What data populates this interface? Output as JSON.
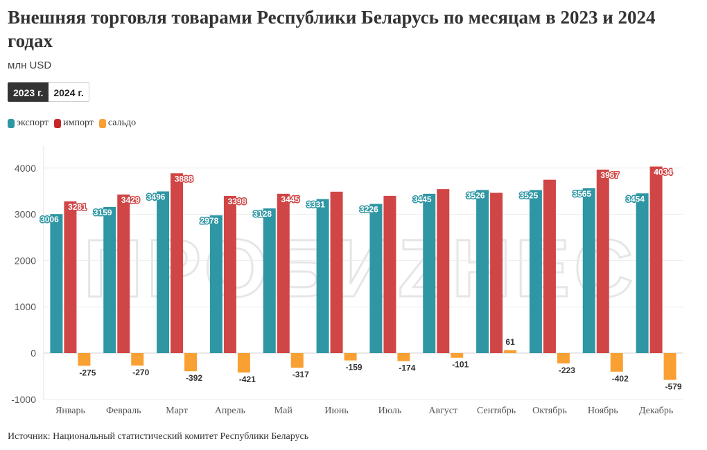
{
  "header": {
    "title": "Внешняя торговля товарами Республики Беларусь по месяцам в 2023 и 2024 годах",
    "subtitle": "млн USD"
  },
  "tabs": [
    {
      "label": "2023 г.",
      "active": true
    },
    {
      "label": "2024 г.",
      "active": false
    }
  ],
  "legend": [
    {
      "label": "экспорт",
      "color": "#2f96a4"
    },
    {
      "label": "импорт",
      "color": "#d04545"
    },
    {
      "label": "сальдо",
      "color": "#f9a033"
    }
  ],
  "watermark": "ПРОБИZНЕС",
  "footer": {
    "source": "Источник: Национальный статистический комитет Республики Беларусь"
  },
  "chart_data": {
    "type": "bar",
    "title": "Внешняя торговля товарами Республики Беларусь по месяцам в 2023 и 2024 годах",
    "ylabel": "",
    "xlabel": "",
    "ylim": [
      -1000,
      4500
    ],
    "yticks": [
      -1000,
      0,
      1000,
      2000,
      3000,
      4000
    ],
    "grid": true,
    "legend_position": "top-left",
    "categories": [
      "Январь",
      "Февраль",
      "Март",
      "Апрель",
      "Май",
      "Июнь",
      "Июль",
      "Август",
      "Сентябрь",
      "Октябрь",
      "Ноябрь",
      "Декабрь"
    ],
    "series": [
      {
        "name": "экспорт",
        "color": "#2f96a4",
        "values": [
          3006,
          3159,
          3496,
          2978,
          3128,
          3331,
          3226,
          3445,
          3526,
          3525,
          3565,
          3454
        ],
        "labeled": [
          true,
          true,
          true,
          true,
          true,
          true,
          true,
          true,
          true,
          true,
          true,
          true
        ]
      },
      {
        "name": "импорт",
        "color": "#d04545",
        "values": [
          3281,
          3429,
          3888,
          3398,
          3445,
          3490,
          3400,
          3546,
          3465,
          3748,
          3967,
          4034
        ],
        "labeled": [
          true,
          true,
          true,
          true,
          true,
          false,
          false,
          false,
          false,
          false,
          true,
          true
        ]
      },
      {
        "name": "сальдо",
        "color": "#f9a033",
        "values": [
          -275,
          -270,
          -392,
          -421,
          -317,
          -159,
          -174,
          -101,
          61,
          -223,
          -402,
          -579
        ],
        "labeled": [
          true,
          true,
          true,
          true,
          true,
          true,
          true,
          true,
          true,
          true,
          true,
          true
        ]
      }
    ]
  }
}
